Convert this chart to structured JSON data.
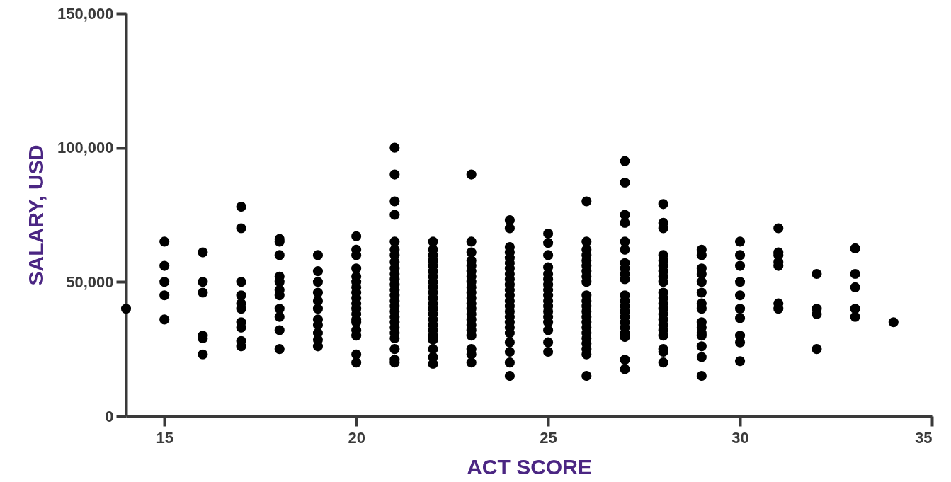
{
  "chart_data": {
    "type": "scatter",
    "xlabel": "ACT SCORE",
    "ylabel": "SALARY, USD",
    "xlim": [
      14,
      35
    ],
    "xticks": [
      15,
      20,
      25,
      30,
      35
    ],
    "ylim": [
      0,
      150000
    ],
    "yticks": [
      0,
      {
        "value": 50000,
        "label": "50,000"
      },
      {
        "value": 100000,
        "label": "100,000"
      },
      {
        "value": 150000,
        "label": "150,000"
      }
    ],
    "grid": false,
    "marker": "circle",
    "series": [
      {
        "color": "#000000",
        "x": [
          14,
          15,
          15,
          15,
          15,
          15,
          16,
          16,
          16,
          16,
          16,
          16,
          17,
          17,
          17,
          17,
          17,
          17,
          17,
          17,
          17,
          17,
          18,
          18,
          18,
          18,
          18,
          18,
          18,
          18,
          18,
          18,
          18,
          19,
          19,
          19,
          19,
          19,
          19,
          19,
          19,
          19,
          19,
          19,
          20,
          20,
          20,
          20,
          20,
          20,
          20,
          20,
          20,
          20,
          20,
          20,
          20,
          20,
          20,
          20,
          20,
          20,
          21,
          21,
          21,
          21,
          21,
          21,
          21,
          21,
          21,
          21,
          21,
          21,
          21,
          21,
          21,
          21,
          21,
          21,
          21,
          21,
          21,
          21,
          21,
          21,
          21,
          22,
          22,
          22,
          22,
          22,
          22,
          22,
          22,
          22,
          22,
          22,
          22,
          22,
          22,
          22,
          22,
          22,
          22,
          22,
          22,
          22,
          22,
          23,
          23,
          23,
          23,
          23,
          23,
          23,
          23,
          23,
          23,
          23,
          23,
          23,
          23,
          23,
          23,
          23,
          23,
          23,
          23,
          23,
          24,
          24,
          24,
          24,
          24,
          24,
          24,
          24,
          24,
          24,
          24,
          24,
          24,
          24,
          24,
          24,
          24,
          24,
          24,
          24,
          24,
          24,
          24,
          25,
          25,
          25,
          25,
          25,
          25,
          25,
          25,
          25,
          25,
          25,
          25,
          25,
          25,
          25,
          25,
          25,
          26,
          26,
          26,
          26,
          26,
          26,
          26,
          26,
          26,
          26,
          26,
          26,
          26,
          26,
          26,
          26,
          26,
          26,
          26,
          26,
          26,
          26,
          27,
          27,
          27,
          27,
          27,
          27,
          27,
          27,
          27,
          27,
          27,
          27,
          27,
          27,
          27,
          27,
          27,
          27,
          27,
          27,
          27,
          28,
          28,
          28,
          28,
          28,
          28,
          28,
          28,
          28,
          28,
          28,
          28,
          28,
          28,
          28,
          28,
          28,
          28,
          28,
          28,
          28,
          29,
          29,
          29,
          29,
          29,
          29,
          29,
          29,
          29,
          29,
          29,
          29,
          29,
          29,
          29,
          30,
          30,
          30,
          30,
          30,
          30,
          30,
          30,
          30,
          30,
          31,
          31,
          31,
          31,
          31,
          31,
          31,
          32,
          32,
          32,
          32,
          33,
          33,
          33,
          33,
          33,
          34
        ],
        "values": [
          40000,
          65000,
          56000,
          50000,
          45000,
          36000,
          61000,
          50000,
          46000,
          30000,
          29000,
          23000,
          78000,
          70000,
          50000,
          45000,
          42000,
          40000,
          35000,
          33000,
          28000,
          26000,
          66000,
          65000,
          60000,
          52000,
          50000,
          47000,
          45000,
          40000,
          37000,
          32000,
          25000,
          60000,
          54000,
          50000,
          46000,
          43000,
          40000,
          36000,
          34000,
          31000,
          28500,
          26000,
          67000,
          62000,
          60000,
          55000,
          52000,
          50000,
          48000,
          46000,
          44000,
          42000,
          40000,
          38000,
          36000,
          35000,
          32000,
          30000,
          23000,
          20000,
          100000,
          90000,
          80000,
          75000,
          65000,
          62000,
          60000,
          57500,
          55000,
          53000,
          51000,
          49000,
          47000,
          45000,
          43000,
          41000,
          39000,
          37000,
          35000,
          33000,
          31000,
          29000,
          25000,
          21000,
          20000,
          65000,
          62000,
          60000,
          58000,
          56000,
          54000,
          52000,
          50000,
          48000,
          46000,
          44000,
          42000,
          40000,
          38000,
          36000,
          34000,
          32000,
          30000,
          28500,
          25000,
          22000,
          19500,
          90000,
          65000,
          61000,
          58000,
          56000,
          54000,
          52000,
          50000,
          48000,
          46000,
          44000,
          42000,
          40000,
          38000,
          36000,
          34000,
          32000,
          30000,
          25000,
          23000,
          20000,
          73000,
          70000,
          63000,
          61000,
          59000,
          57000,
          55000,
          53000,
          51000,
          49000,
          47000,
          45000,
          43000,
          41000,
          39000,
          37000,
          35000,
          33000,
          31000,
          27500,
          24000,
          20000,
          15000,
          68000,
          64500,
          60000,
          55500,
          53000,
          51000,
          49000,
          47000,
          45000,
          43000,
          41000,
          39000,
          37000,
          35000,
          32000,
          27500,
          24000,
          80000,
          65000,
          62000,
          60000,
          58000,
          56000,
          54000,
          52000,
          50000,
          45000,
          43000,
          41000,
          39000,
          37000,
          35000,
          33000,
          31000,
          29000,
          27000,
          25000,
          23000,
          15000,
          95000,
          87000,
          75000,
          72000,
          65000,
          62000,
          57000,
          55000,
          53000,
          51000,
          45000,
          43000,
          41000,
          39000,
          37000,
          35000,
          33000,
          31000,
          29500,
          21000,
          17500,
          79000,
          72000,
          70000,
          60000,
          58000,
          56000,
          54000,
          52000,
          50000,
          46000,
          44000,
          42000,
          40000,
          38000,
          36000,
          34000,
          32000,
          30000,
          25000,
          24000,
          20000,
          62000,
          60000,
          55000,
          53000,
          50000,
          46000,
          42000,
          40000,
          35000,
          33000,
          31000,
          30000,
          26000,
          22000,
          15000,
          65000,
          60000,
          56000,
          50000,
          45000,
          40000,
          36500,
          30000,
          27500,
          20500,
          70000,
          61000,
          60000,
          57500,
          56000,
          42000,
          40000,
          53000,
          40000,
          38000,
          25000,
          62500,
          53000,
          48000,
          40000,
          37000,
          35000
        ]
      }
    ]
  }
}
